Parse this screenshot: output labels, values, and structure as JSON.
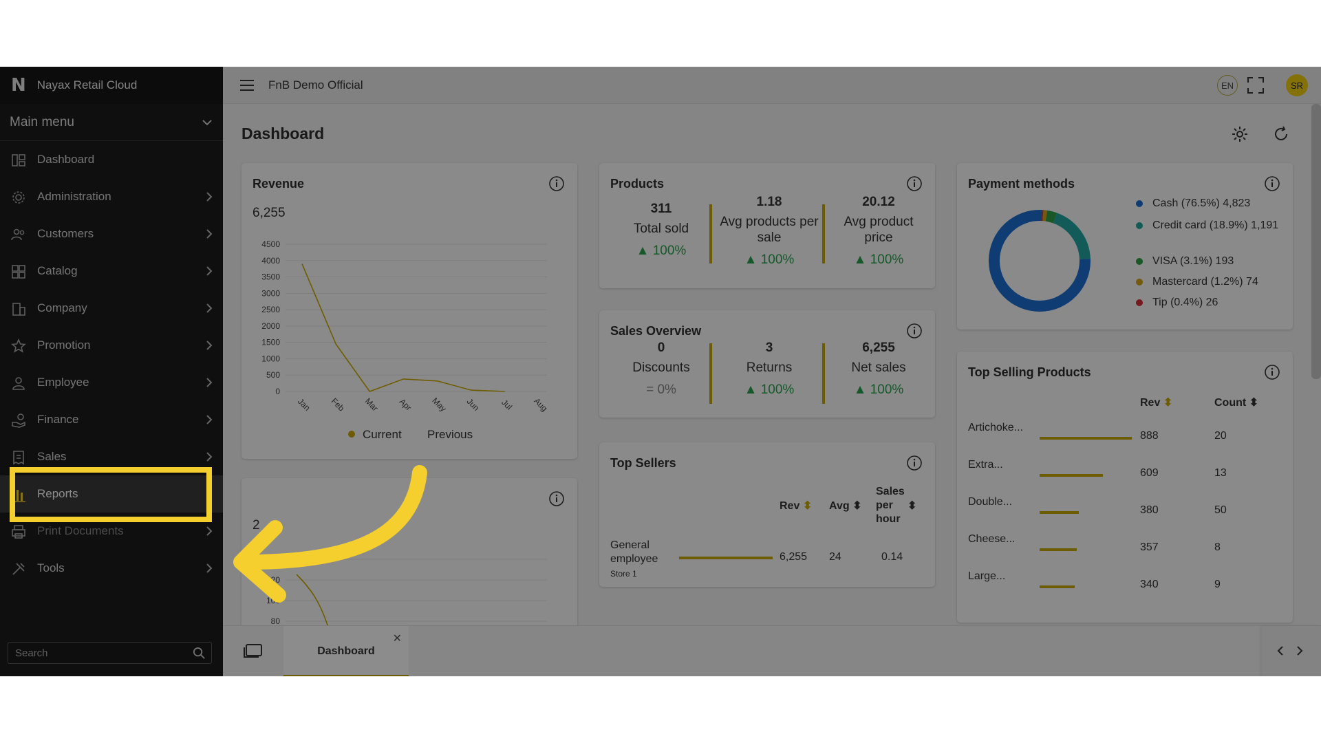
{
  "app": {
    "brand_logo": "N",
    "brand_name": "Nayax Retail Cloud",
    "store_name": "FnB Demo Official",
    "lang": "EN",
    "user_initials": "SR"
  },
  "sidebar": {
    "main_menu_label": "Main menu",
    "items": [
      {
        "label": "Dashboard",
        "icon": "dashboard-icon",
        "chevron": false
      },
      {
        "label": "Administration",
        "icon": "gear-icon",
        "chevron": true
      },
      {
        "label": "Customers",
        "icon": "users-icon",
        "chevron": true
      },
      {
        "label": "Catalog",
        "icon": "grid-icon",
        "chevron": true
      },
      {
        "label": "Company",
        "icon": "building-icon",
        "chevron": true
      },
      {
        "label": "Promotion",
        "icon": "star-icon",
        "chevron": true
      },
      {
        "label": "Employee",
        "icon": "person-icon",
        "chevron": true
      },
      {
        "label": "Finance",
        "icon": "hand-coin-icon",
        "chevron": true
      },
      {
        "label": "Sales",
        "icon": "receipt-icon",
        "chevron": true
      },
      {
        "label": "Reports",
        "icon": "bar-chart-icon",
        "chevron": false,
        "active": true
      },
      {
        "label": "Print Documents",
        "icon": "printer-icon",
        "chevron": true
      },
      {
        "label": "Tools",
        "icon": "tools-icon",
        "chevron": true
      }
    ],
    "search_placeholder": "Search"
  },
  "page": {
    "title": "Dashboard"
  },
  "revenue": {
    "title": "Revenue",
    "total": "6,255",
    "chart_data": {
      "type": "line",
      "categories": [
        "Jan",
        "Feb",
        "Mar",
        "Apr",
        "May",
        "Jun",
        "Jul",
        "Aug"
      ],
      "series": [
        {
          "name": "Current",
          "values": [
            3900,
            1450,
            0,
            380,
            320,
            40,
            0,
            null
          ]
        },
        {
          "name": "Previous",
          "values": [
            null,
            null,
            null,
            null,
            null,
            null,
            null,
            null
          ]
        }
      ],
      "ylim": [
        0,
        4500
      ],
      "yticks": [
        "4500",
        "4000",
        "3500",
        "3000",
        "2500",
        "2000",
        "1500",
        "1000",
        "500",
        "0"
      ],
      "legend": "bottom"
    },
    "legend_current": "Current",
    "legend_previous": "Previous"
  },
  "second_card": {
    "number_visible": "2",
    "chart_data": {
      "type": "line",
      "yticks": [
        "140",
        "120",
        "100",
        "80"
      ],
      "ylim": [
        80,
        140
      ]
    }
  },
  "products": {
    "title": "Products",
    "stats": [
      {
        "value": "311",
        "label": "Total sold",
        "trend": "100%"
      },
      {
        "value": "1.18",
        "label": "Avg products per sale",
        "trend": "100%"
      },
      {
        "value": "20.12",
        "label": "Avg product price",
        "trend": "100%"
      }
    ]
  },
  "sales_overview": {
    "title": "Sales Overview",
    "stats": [
      {
        "value": "0",
        "label": "Discounts",
        "trend": "0%",
        "trend_symbol": "="
      },
      {
        "value": "3",
        "label": "Returns",
        "trend": "100%"
      },
      {
        "value": "6,255",
        "label": "Net sales",
        "trend": "100%"
      }
    ]
  },
  "top_sellers": {
    "title": "Top Sellers",
    "headers": {
      "rev": "Rev",
      "avg": "Avg",
      "sales_per_hour": "Sales per hour"
    },
    "rows": [
      {
        "name": "General employee",
        "store": "Store 1",
        "rev": "6,255",
        "avg": "24",
        "sph": "0.14",
        "bar": 1.0
      }
    ]
  },
  "payment_methods": {
    "title": "Payment methods",
    "items": [
      {
        "label": "Cash (76.5%) 4,823",
        "color": "#1d6fd1",
        "pct": 76.5
      },
      {
        "label": "Credit card (18.9%) 1,191",
        "color": "#22a6a0",
        "pct": 18.9
      },
      {
        "label": "VISA (3.1%) 193",
        "color": "#2e9e45",
        "pct": 3.1
      },
      {
        "label": "Mastercard (1.2%) 74",
        "color": "#d6a21b",
        "pct": 1.2
      },
      {
        "label": "Tip (0.4%) 26",
        "color": "#d6303a",
        "pct": 0.4
      }
    ]
  },
  "top_selling": {
    "title": "Top Selling Products",
    "headers": {
      "rev": "Rev",
      "count": "Count"
    },
    "rows": [
      {
        "name": "Artichoke...",
        "rev": "888",
        "count": "20",
        "bar": 1.0
      },
      {
        "name": "Extra...",
        "rev": "609",
        "count": "13",
        "bar": 0.686
      },
      {
        "name": "Double...",
        "rev": "380",
        "count": "50",
        "bar": 0.428
      },
      {
        "name": "Cheese...",
        "rev": "357",
        "count": "8",
        "bar": 0.402
      },
      {
        "name": "Large...",
        "rev": "340",
        "count": "9",
        "bar": 0.383
      }
    ]
  },
  "tabs": {
    "active_label": "Dashboard",
    "close": "✕"
  },
  "colors": {
    "accent": "#c9a800",
    "highlight": "#f5cf2e",
    "trend_up": "#2aa14f"
  }
}
